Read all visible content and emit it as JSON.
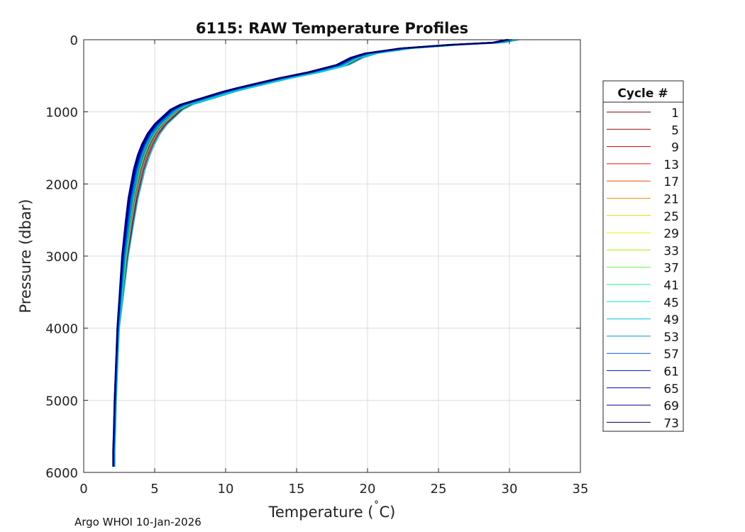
{
  "chart_data": {
    "type": "line",
    "title": "6115: RAW Temperature Profiles",
    "xlabel_main": "Temperature (",
    "xlabel_deg": "˚",
    "xlabel_unit": "C)",
    "ylabel": "Pressure (dbar)",
    "xlim": [
      0,
      35
    ],
    "ylim": [
      0,
      6000
    ],
    "y_reversed": true,
    "grid": true,
    "x_ticks": [
      0,
      5,
      10,
      15,
      20,
      25,
      30,
      35
    ],
    "y_ticks": [
      0,
      1000,
      2000,
      3000,
      4000,
      5000,
      6000
    ],
    "legend": {
      "title": "Cycle #",
      "placement": "right",
      "entries": [
        {
          "label": "1",
          "color": "#800000"
        },
        {
          "label": "5",
          "color": "#a00000"
        },
        {
          "label": "9",
          "color": "#c40000"
        },
        {
          "label": "13",
          "color": "#e41a00"
        },
        {
          "label": "17",
          "color": "#f05000"
        },
        {
          "label": "21",
          "color": "#f09000"
        },
        {
          "label": "25",
          "color": "#e8d000"
        },
        {
          "label": "29",
          "color": "#e8f000"
        },
        {
          "label": "33",
          "color": "#a8f000"
        },
        {
          "label": "37",
          "color": "#60f040"
        },
        {
          "label": "41",
          "color": "#20f090"
        },
        {
          "label": "45",
          "color": "#00e8c0"
        },
        {
          "label": "49",
          "color": "#00c0f0"
        },
        {
          "label": "53",
          "color": "#0090e0"
        },
        {
          "label": "57",
          "color": "#0058f0"
        },
        {
          "label": "61",
          "color": "#0020d0"
        },
        {
          "label": "65",
          "color": "#0000a8"
        },
        {
          "label": "69",
          "color": "#000088"
        },
        {
          "label": "73",
          "color": "#000060"
        }
      ]
    },
    "base_profile": {
      "temperature": [
        30.0,
        29.0,
        26.0,
        22.5,
        20.0,
        19.0,
        18.5,
        18.0,
        16.0,
        14.0,
        12.5,
        11.0,
        10.0,
        9.0,
        8.0,
        7.0,
        6.3,
        5.8,
        5.2,
        4.7,
        4.3,
        4.0,
        3.7,
        3.5,
        3.3,
        3.1,
        2.8,
        2.6,
        2.4,
        2.3,
        2.2,
        2.15,
        2.1,
        2.1
      ],
      "pressure": [
        0,
        40,
        70,
        120,
        190,
        250,
        300,
        350,
        450,
        530,
        600,
        670,
        720,
        780,
        840,
        900,
        970,
        1060,
        1170,
        1300,
        1450,
        1600,
        1800,
        2000,
        2200,
        2500,
        3000,
        3500,
        4000,
        4500,
        5000,
        5400,
        5700,
        5920
      ]
    },
    "profile_offsets_degC": [
      0.4,
      0.6,
      0.5,
      0.35,
      0.25,
      0.15,
      0.05,
      0.0,
      -0.05,
      0.15,
      0.3,
      0.45,
      0.7,
      0.2,
      0.05,
      -0.05,
      -0.1,
      -0.15,
      -0.2
    ]
  },
  "credit": "Argo WHOI 10-Jan-2026"
}
